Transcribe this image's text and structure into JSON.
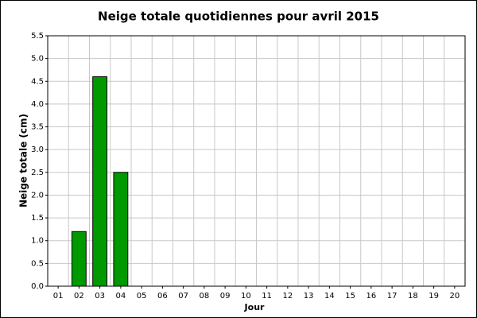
{
  "chart_data": {
    "type": "bar",
    "title": "Neige totale quotidiennes pour avril 2015",
    "x_label": "Jour",
    "y_label": "Neige totale (cm)",
    "categories": [
      "01",
      "02",
      "03",
      "04",
      "05",
      "06",
      "07",
      "08",
      "09",
      "10",
      "11",
      "12",
      "13",
      "14",
      "15",
      "16",
      "17",
      "18",
      "19",
      "20"
    ],
    "values": [
      0,
      1.2,
      4.6,
      2.5,
      0,
      0,
      0,
      0,
      0,
      0,
      0,
      0,
      0,
      0,
      0,
      0,
      0,
      0,
      0,
      0
    ],
    "color": "#009900",
    "ylim": [
      0,
      5.5
    ],
    "yticks": [
      {
        "value": 0,
        "label": "0.0"
      },
      0.5,
      {
        "value": 1,
        "label": "1.0"
      },
      1.5,
      {
        "value": 2,
        "label": "2.0"
      },
      2.5,
      {
        "value": 3,
        "label": "3.0"
      },
      3.5,
      {
        "value": 4,
        "label": "4.0"
      },
      4.5,
      {
        "value": 5,
        "label": "5.0"
      },
      5.5
    ],
    "grid": true
  }
}
